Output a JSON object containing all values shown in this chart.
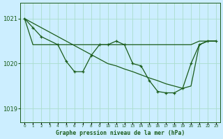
{
  "background_color": "#cceeff",
  "grid_color": "#aaddcc",
  "line_color": "#1a5c1a",
  "title": "Graphe pression niveau de la mer (hPa)",
  "ylabel_ticks": [
    1019,
    1020,
    1021
  ],
  "xlim": [
    -0.5,
    23.5
  ],
  "ylim": [
    1018.7,
    1021.35
  ],
  "xticks": [
    0,
    1,
    2,
    3,
    4,
    5,
    6,
    7,
    8,
    9,
    10,
    11,
    12,
    13,
    14,
    15,
    16,
    17,
    18,
    19,
    20,
    21,
    22,
    23
  ],
  "line_flat_x": [
    0,
    1,
    2,
    3,
    4,
    5,
    6,
    7,
    8,
    9,
    10,
    11,
    12,
    13,
    14,
    15,
    16,
    17,
    18,
    19,
    20,
    21,
    22,
    23
  ],
  "line_flat_y": [
    1021.0,
    1020.42,
    1020.42,
    1020.42,
    1020.42,
    1020.42,
    1020.42,
    1020.42,
    1020.42,
    1020.42,
    1020.42,
    1020.42,
    1020.42,
    1020.42,
    1020.42,
    1020.42,
    1020.42,
    1020.42,
    1020.42,
    1020.42,
    1020.42,
    1020.5,
    1020.5,
    1020.5
  ],
  "line_diag_x": [
    0,
    1,
    2,
    3,
    4,
    5,
    6,
    7,
    8,
    9,
    10,
    11,
    12,
    13,
    14,
    15,
    16,
    17,
    18,
    19,
    20,
    21,
    22,
    23
  ],
  "line_diag_y": [
    1021.0,
    1020.9,
    1020.8,
    1020.7,
    1020.6,
    1020.5,
    1020.4,
    1020.3,
    1020.2,
    1020.1,
    1020.0,
    1019.95,
    1019.88,
    1019.82,
    1019.75,
    1019.68,
    1019.62,
    1019.55,
    1019.5,
    1019.45,
    1019.5,
    1020.42,
    1020.5,
    1020.5
  ],
  "line_zigzag_x": [
    0,
    1,
    2,
    4,
    5,
    6,
    7,
    8,
    9,
    10,
    11,
    12,
    13,
    14,
    15,
    16,
    17,
    18,
    19,
    20,
    21,
    22,
    23
  ],
  "line_zigzag_y": [
    1021.0,
    1020.8,
    1020.6,
    1020.42,
    1020.05,
    1019.82,
    1019.82,
    1020.18,
    1020.42,
    1020.42,
    1020.5,
    1020.42,
    1020.0,
    1019.95,
    1019.62,
    1019.38,
    1019.35,
    1019.35,
    1019.45,
    1020.0,
    1020.42,
    1020.5,
    1020.5
  ]
}
